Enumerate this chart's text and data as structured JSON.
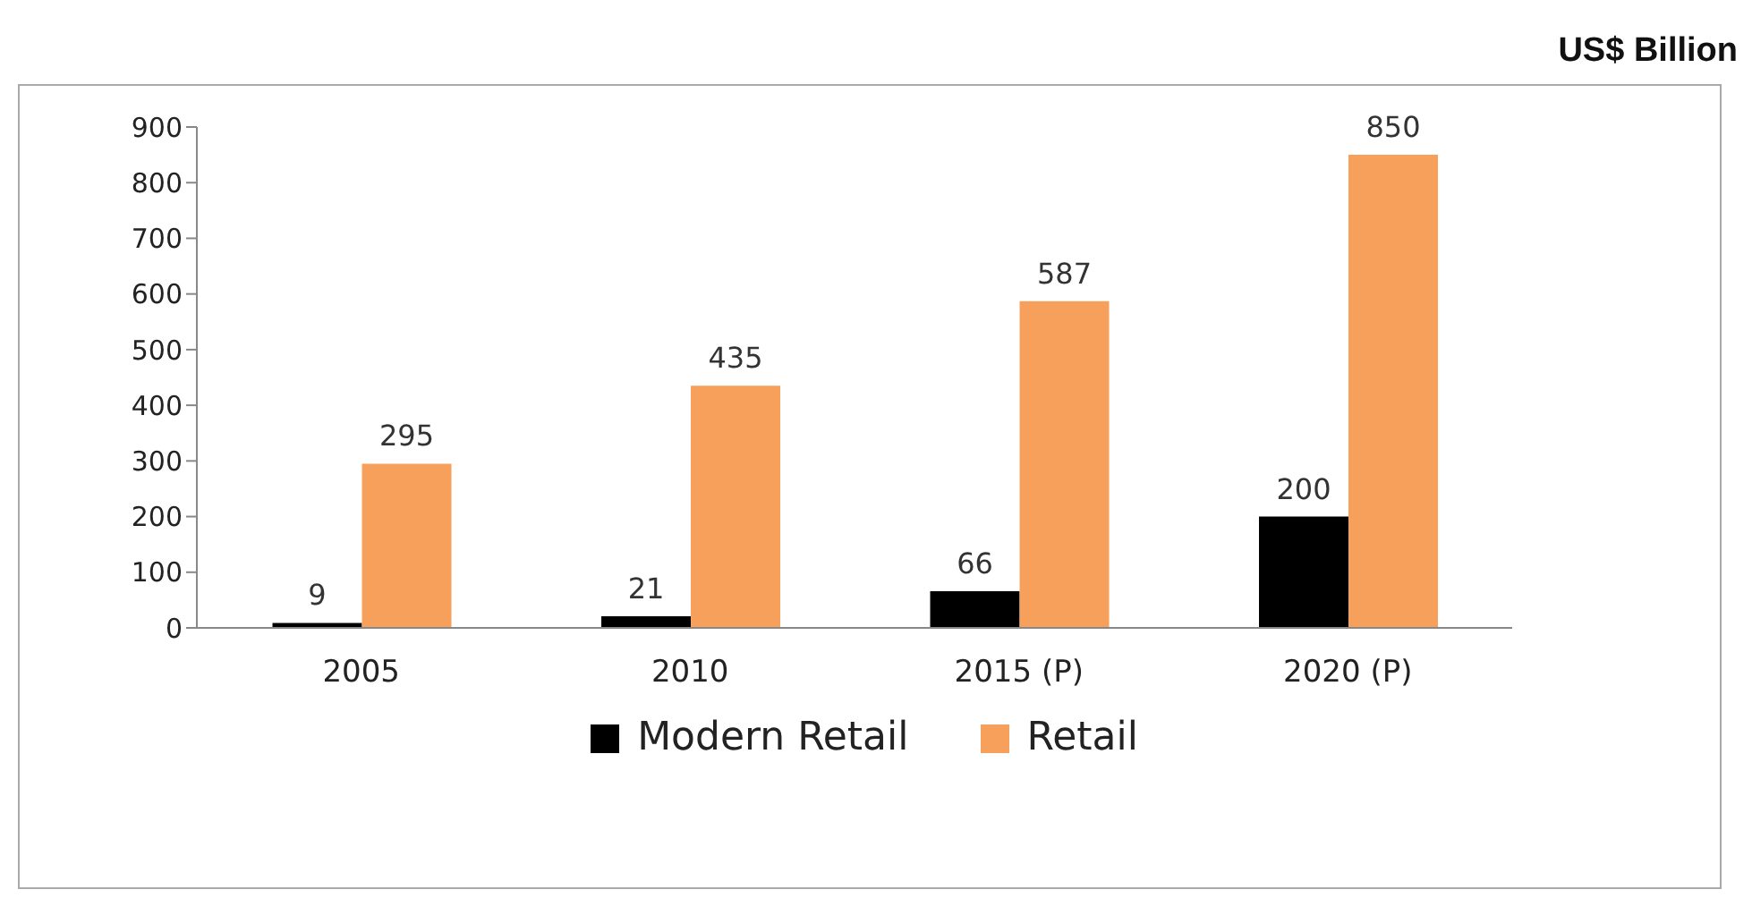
{
  "chart_data": {
    "type": "bar",
    "categories": [
      "2005",
      "2010",
      "2015 (P)",
      "2020 (P)"
    ],
    "series": [
      {
        "name": "Modern Retail",
        "color": "#000000",
        "values": [
          9,
          21,
          66,
          200
        ]
      },
      {
        "name": "Retail",
        "color": "#f7a05c",
        "values": [
          295,
          435,
          587,
          850
        ]
      }
    ],
    "ylim": [
      0,
      900
    ],
    "yticks": [
      0,
      100,
      200,
      300,
      400,
      500,
      600,
      700,
      800,
      900
    ],
    "annotations": [
      "US$ Billion"
    ],
    "data_labels": true,
    "grid": false,
    "legend": "bottom"
  }
}
